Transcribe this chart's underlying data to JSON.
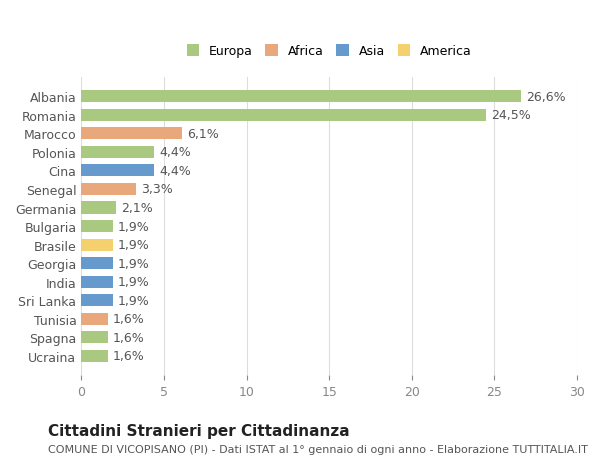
{
  "categories": [
    "Ucraina",
    "Spagna",
    "Tunisia",
    "Sri Lanka",
    "India",
    "Georgia",
    "Brasile",
    "Bulgaria",
    "Germania",
    "Senegal",
    "Cina",
    "Polonia",
    "Marocco",
    "Romania",
    "Albania"
  ],
  "values": [
    1.6,
    1.6,
    1.6,
    1.9,
    1.9,
    1.9,
    1.9,
    1.9,
    2.1,
    3.3,
    4.4,
    4.4,
    6.1,
    24.5,
    26.6
  ],
  "bar_colors": [
    "#a8c97f",
    "#a8c97f",
    "#e8a87c",
    "#6699cc",
    "#6699cc",
    "#6699cc",
    "#f5d06e",
    "#a8c97f",
    "#a8c97f",
    "#e8a87c",
    "#6699cc",
    "#a8c97f",
    "#e8a87c",
    "#a8c97f",
    "#a8c97f"
  ],
  "labels": [
    "1,6%",
    "1,6%",
    "1,6%",
    "1,9%",
    "1,9%",
    "1,9%",
    "1,9%",
    "1,9%",
    "2,1%",
    "3,3%",
    "4,4%",
    "4,4%",
    "6,1%",
    "24,5%",
    "26,6%"
  ],
  "legend": [
    {
      "label": "Europa",
      "color": "#a8c97f"
    },
    {
      "label": "Africa",
      "color": "#e8a87c"
    },
    {
      "label": "Asia",
      "color": "#6699cc"
    },
    {
      "label": "America",
      "color": "#f5d06e"
    }
  ],
  "xlim": [
    0,
    30
  ],
  "xticks": [
    0,
    5,
    10,
    15,
    20,
    25,
    30
  ],
  "title": "Cittadini Stranieri per Cittadinanza",
  "subtitle": "COMUNE DI VICOPISANO (PI) - Dati ISTAT al 1° gennaio di ogni anno - Elaborazione TUTTITALIA.IT",
  "background_color": "#ffffff",
  "grid_color": "#dddddd",
  "bar_height": 0.65,
  "label_fontsize": 9,
  "tick_fontsize": 9,
  "title_fontsize": 11,
  "subtitle_fontsize": 8
}
